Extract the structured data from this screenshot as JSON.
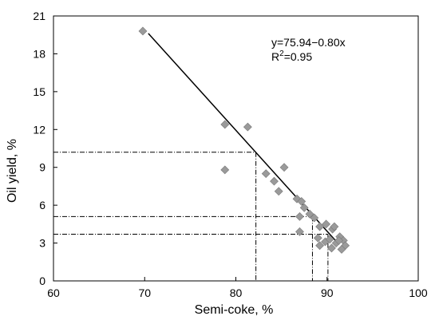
{
  "chart_data": {
    "type": "scatter",
    "title": "",
    "xlabel": "Semi-coke, %",
    "ylabel": "Oil yield, %",
    "xlim": [
      60,
      100
    ],
    "ylim": [
      0,
      21
    ],
    "x_ticks": [
      60,
      70,
      80,
      90,
      100
    ],
    "y_ticks": [
      0,
      3,
      6,
      9,
      12,
      15,
      18,
      21
    ],
    "grid": false,
    "legend": "none",
    "marker": "diamond",
    "marker_color": "#9a9a9a",
    "series": [
      {
        "points": [
          [
            69.8,
            19.8
          ],
          [
            78.8,
            12.4
          ],
          [
            81.3,
            12.2
          ],
          [
            78.8,
            8.8
          ],
          [
            83.3,
            8.5
          ],
          [
            84.2,
            7.9
          ],
          [
            85.3,
            9.0
          ],
          [
            84.7,
            7.1
          ],
          [
            86.7,
            6.5
          ],
          [
            87.2,
            6.3
          ],
          [
            87.5,
            5.8
          ],
          [
            88.1,
            5.3
          ],
          [
            88.6,
            5.0
          ],
          [
            87.0,
            5.1
          ],
          [
            89.2,
            4.3
          ],
          [
            89.9,
            4.5
          ],
          [
            90.6,
            4.1
          ],
          [
            90.8,
            4.3
          ],
          [
            91.4,
            3.5
          ],
          [
            89.0,
            3.4
          ],
          [
            89.8,
            3.1
          ],
          [
            90.3,
            3.3
          ],
          [
            91.0,
            3.0
          ],
          [
            91.8,
            3.2
          ],
          [
            92.0,
            2.8
          ],
          [
            91.6,
            2.5
          ],
          [
            89.2,
            2.8
          ],
          [
            90.5,
            2.6
          ],
          [
            87.0,
            3.9
          ],
          [
            91.3,
            3.2
          ]
        ]
      }
    ],
    "fit_line": {
      "intercept": 75.94,
      "slope": -0.8,
      "x_range": [
        70.4,
        91.3
      ]
    },
    "equation_label": "y=75.94−0.80x",
    "r2_prefix": "R",
    "r2_exponent": "2",
    "r2_suffix": "=0.95",
    "reference_lines": [
      {
        "y": 10.2,
        "x": 82.2
      },
      {
        "y": 5.1,
        "x": 88.4
      },
      {
        "y": 3.7,
        "x": 90.1
      }
    ]
  }
}
